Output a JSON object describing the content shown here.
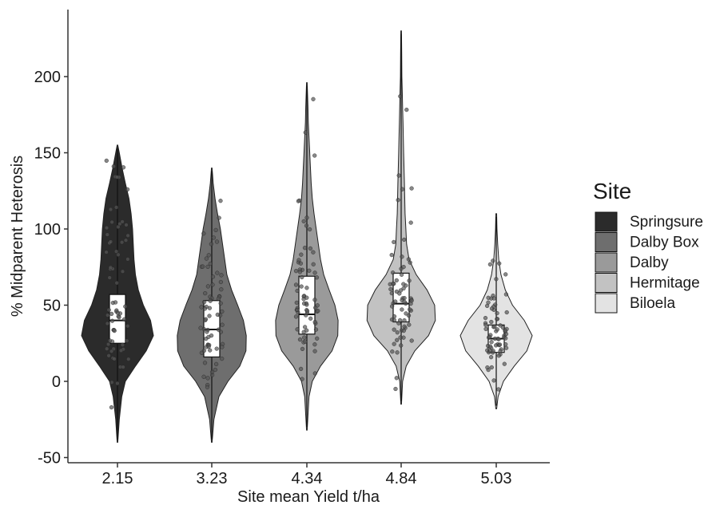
{
  "chart_data": {
    "type": "violin",
    "title": "",
    "xlabel": "Site mean Yield t/ha",
    "ylabel": "% Midparent Heterosis",
    "ylim": [
      -52,
      232
    ],
    "yticks": [
      -50,
      0,
      50,
      100,
      150,
      200
    ],
    "grid": false,
    "legend": {
      "title": "Site",
      "placement": "right",
      "entries": [
        {
          "name": "Springsure",
          "color": "#2b2b2b"
        },
        {
          "name": "Dalby Box",
          "color": "#6e6e6e"
        },
        {
          "name": "Dalby",
          "color": "#9a9a9a"
        },
        {
          "name": "Hermitage",
          "color": "#c2c2c2"
        },
        {
          "name": "Biloela",
          "color": "#e3e3e3"
        }
      ]
    },
    "categories": [
      "2.15",
      "3.23",
      "4.34",
      "4.84",
      "5.03"
    ],
    "series": [
      {
        "name": "Springsure",
        "category": "2.15",
        "color": "#2b2b2b",
        "ymin": -40,
        "ymax": 155,
        "box": {
          "q1": 25,
          "median": 40,
          "q3": 57
        },
        "density": [
          [
            -40,
            0.01
          ],
          [
            -25,
            0.05
          ],
          [
            -10,
            0.12
          ],
          [
            0,
            0.22
          ],
          [
            10,
            0.5
          ],
          [
            20,
            0.8
          ],
          [
            30,
            1.0
          ],
          [
            40,
            0.92
          ],
          [
            50,
            0.72
          ],
          [
            60,
            0.58
          ],
          [
            70,
            0.5
          ],
          [
            80,
            0.46
          ],
          [
            90,
            0.44
          ],
          [
            100,
            0.42
          ],
          [
            110,
            0.38
          ],
          [
            120,
            0.32
          ],
          [
            130,
            0.22
          ],
          [
            140,
            0.13
          ],
          [
            150,
            0.05
          ],
          [
            155,
            0.01
          ]
        ]
      },
      {
        "name": "Dalby Box",
        "category": "3.23",
        "color": "#6e6e6e",
        "ymin": -40,
        "ymax": 140,
        "box": {
          "q1": 16,
          "median": 34,
          "q3": 53
        },
        "density": [
          [
            -40,
            0.01
          ],
          [
            -25,
            0.06
          ],
          [
            -10,
            0.2
          ],
          [
            0,
            0.45
          ],
          [
            10,
            0.78
          ],
          [
            20,
            0.95
          ],
          [
            30,
            0.96
          ],
          [
            40,
            0.88
          ],
          [
            50,
            0.72
          ],
          [
            60,
            0.55
          ],
          [
            70,
            0.42
          ],
          [
            80,
            0.36
          ],
          [
            90,
            0.3
          ],
          [
            100,
            0.24
          ],
          [
            110,
            0.16
          ],
          [
            120,
            0.09
          ],
          [
            130,
            0.04
          ],
          [
            140,
            0.01
          ]
        ]
      },
      {
        "name": "Dalby",
        "category": "4.34",
        "color": "#9a9a9a",
        "ymin": -32,
        "ymax": 196,
        "box": {
          "q1": 31,
          "median": 44,
          "q3": 69
        },
        "density": [
          [
            -32,
            0.01
          ],
          [
            -10,
            0.06
          ],
          [
            0,
            0.15
          ],
          [
            10,
            0.38
          ],
          [
            20,
            0.7
          ],
          [
            30,
            0.86
          ],
          [
            40,
            0.87
          ],
          [
            50,
            0.78
          ],
          [
            60,
            0.62
          ],
          [
            70,
            0.47
          ],
          [
            80,
            0.38
          ],
          [
            90,
            0.32
          ],
          [
            100,
            0.26
          ],
          [
            110,
            0.2
          ],
          [
            120,
            0.15
          ],
          [
            130,
            0.12
          ],
          [
            140,
            0.1
          ],
          [
            150,
            0.08
          ],
          [
            160,
            0.06
          ],
          [
            170,
            0.04
          ],
          [
            180,
            0.03
          ],
          [
            196,
            0.01
          ]
        ]
      },
      {
        "name": "Hermitage",
        "category": "4.84",
        "color": "#c2c2c2",
        "ymin": -15,
        "ymax": 230,
        "box": {
          "q1": 39,
          "median": 51,
          "q3": 71
        },
        "density": [
          [
            -15,
            0.01
          ],
          [
            0,
            0.04
          ],
          [
            10,
            0.14
          ],
          [
            20,
            0.38
          ],
          [
            30,
            0.76
          ],
          [
            40,
            0.95
          ],
          [
            50,
            0.93
          ],
          [
            60,
            0.72
          ],
          [
            70,
            0.42
          ],
          [
            80,
            0.22
          ],
          [
            90,
            0.15
          ],
          [
            100,
            0.13
          ],
          [
            110,
            0.11
          ],
          [
            120,
            0.1
          ],
          [
            130,
            0.09
          ],
          [
            140,
            0.08
          ],
          [
            150,
            0.07
          ],
          [
            160,
            0.06
          ],
          [
            170,
            0.05
          ],
          [
            180,
            0.04
          ],
          [
            190,
            0.03
          ],
          [
            200,
            0.02
          ],
          [
            215,
            0.015
          ],
          [
            230,
            0.01
          ]
        ]
      },
      {
        "name": "Biloela",
        "category": "5.03",
        "color": "#e3e3e3",
        "ymin": -18,
        "ymax": 110,
        "box": {
          "q1": 19,
          "median": 28,
          "q3": 37
        },
        "density": [
          [
            -18,
            0.01
          ],
          [
            -10,
            0.05
          ],
          [
            0,
            0.2
          ],
          [
            10,
            0.5
          ],
          [
            20,
            0.85
          ],
          [
            30,
            1.0
          ],
          [
            40,
            0.78
          ],
          [
            50,
            0.45
          ],
          [
            60,
            0.25
          ],
          [
            70,
            0.13
          ],
          [
            80,
            0.07
          ],
          [
            90,
            0.04
          ],
          [
            100,
            0.02
          ],
          [
            110,
            0.01
          ]
        ]
      }
    ]
  }
}
